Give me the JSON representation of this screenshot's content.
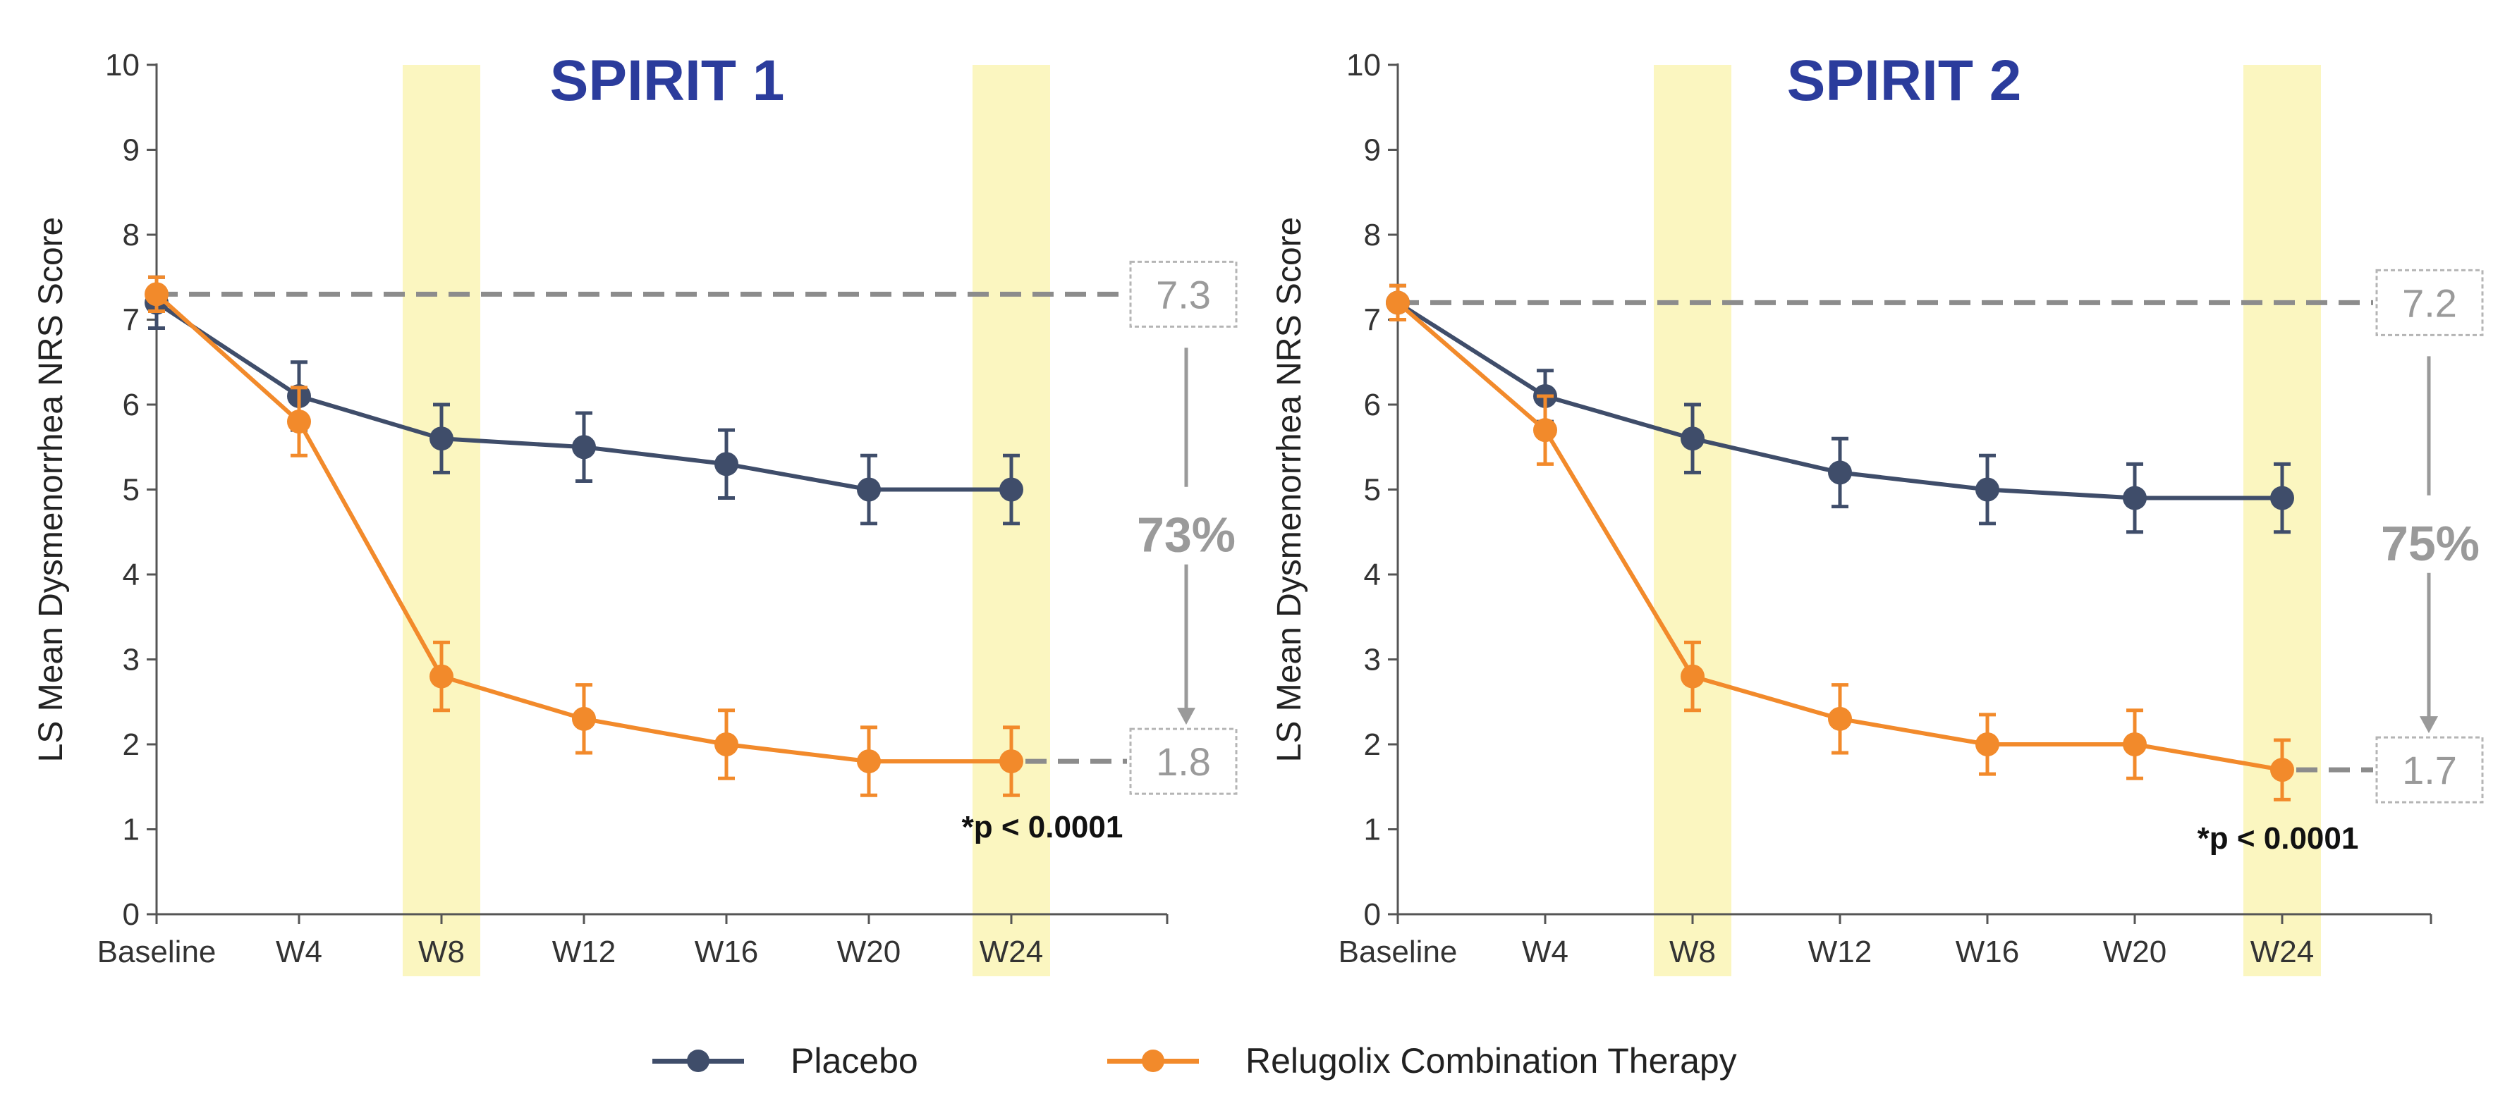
{
  "colors": {
    "placebo": "#3f4d6a",
    "relugolix": "#f28a2b",
    "highlight": "#fbf6c0",
    "title": "#2b3c9c",
    "annot": "#9a9a9a",
    "axis": "#555555"
  },
  "legend": {
    "placebo_label": "Placebo",
    "relugolix_label": "Relugolix Combination Therapy"
  },
  "chart_data": [
    {
      "type": "line",
      "title": "SPIRIT 1",
      "xlabel": "",
      "ylabel": "LS Mean Dysmenorrhea NRS Score",
      "ylim": [
        0,
        10
      ],
      "yticks": [
        "0",
        "1",
        "2",
        "3",
        "4",
        "5",
        "6",
        "7",
        "8",
        "9",
        "10"
      ],
      "categories": [
        "Baseline",
        "W4",
        "W8",
        "W12",
        "W16",
        "W20",
        "W24"
      ],
      "highlight": [
        "W8",
        "W24"
      ],
      "series": [
        {
          "name": "Placebo",
          "values": [
            7.2,
            6.1,
            5.6,
            5.5,
            5.3,
            5.0,
            5.0
          ],
          "err": [
            0.3,
            0.4,
            0.4,
            0.4,
            0.4,
            0.4,
            0.4
          ]
        },
        {
          "name": "Relugolix Combination Therapy",
          "values": [
            7.3,
            5.8,
            2.8,
            2.3,
            2.0,
            1.8,
            1.8
          ],
          "err": [
            0.2,
            0.4,
            0.4,
            0.4,
            0.4,
            0.4,
            0.4
          ]
        }
      ],
      "baseline_label": "7.3",
      "end_label": "1.8",
      "reduction_label": "73%",
      "pvalue": "*p < 0.0001"
    },
    {
      "type": "line",
      "title": "SPIRIT 2",
      "xlabel": "",
      "ylabel": "LS Mean Dysmenorrhea NRS Score",
      "ylim": [
        0,
        10
      ],
      "yticks": [
        "0",
        "1",
        "2",
        "3",
        "4",
        "5",
        "6",
        "7",
        "8",
        "9",
        "10"
      ],
      "categories": [
        "Baseline",
        "W4",
        "W8",
        "W12",
        "W16",
        "W20",
        "W24"
      ],
      "highlight": [
        "W8",
        "W24"
      ],
      "series": [
        {
          "name": "Placebo",
          "values": [
            7.2,
            6.1,
            5.6,
            5.2,
            5.0,
            4.9,
            4.9
          ],
          "err": [
            0.2,
            0.3,
            0.4,
            0.4,
            0.4,
            0.4,
            0.4
          ]
        },
        {
          "name": "Relugolix Combination Therapy",
          "values": [
            7.2,
            5.7,
            2.8,
            2.3,
            2.0,
            2.0,
            1.7
          ],
          "err": [
            0.2,
            0.4,
            0.4,
            0.4,
            0.35,
            0.4,
            0.35
          ]
        }
      ],
      "baseline_label": "7.2",
      "end_label": "1.7",
      "reduction_label": "75%",
      "pvalue": "*p < 0.0001"
    }
  ]
}
